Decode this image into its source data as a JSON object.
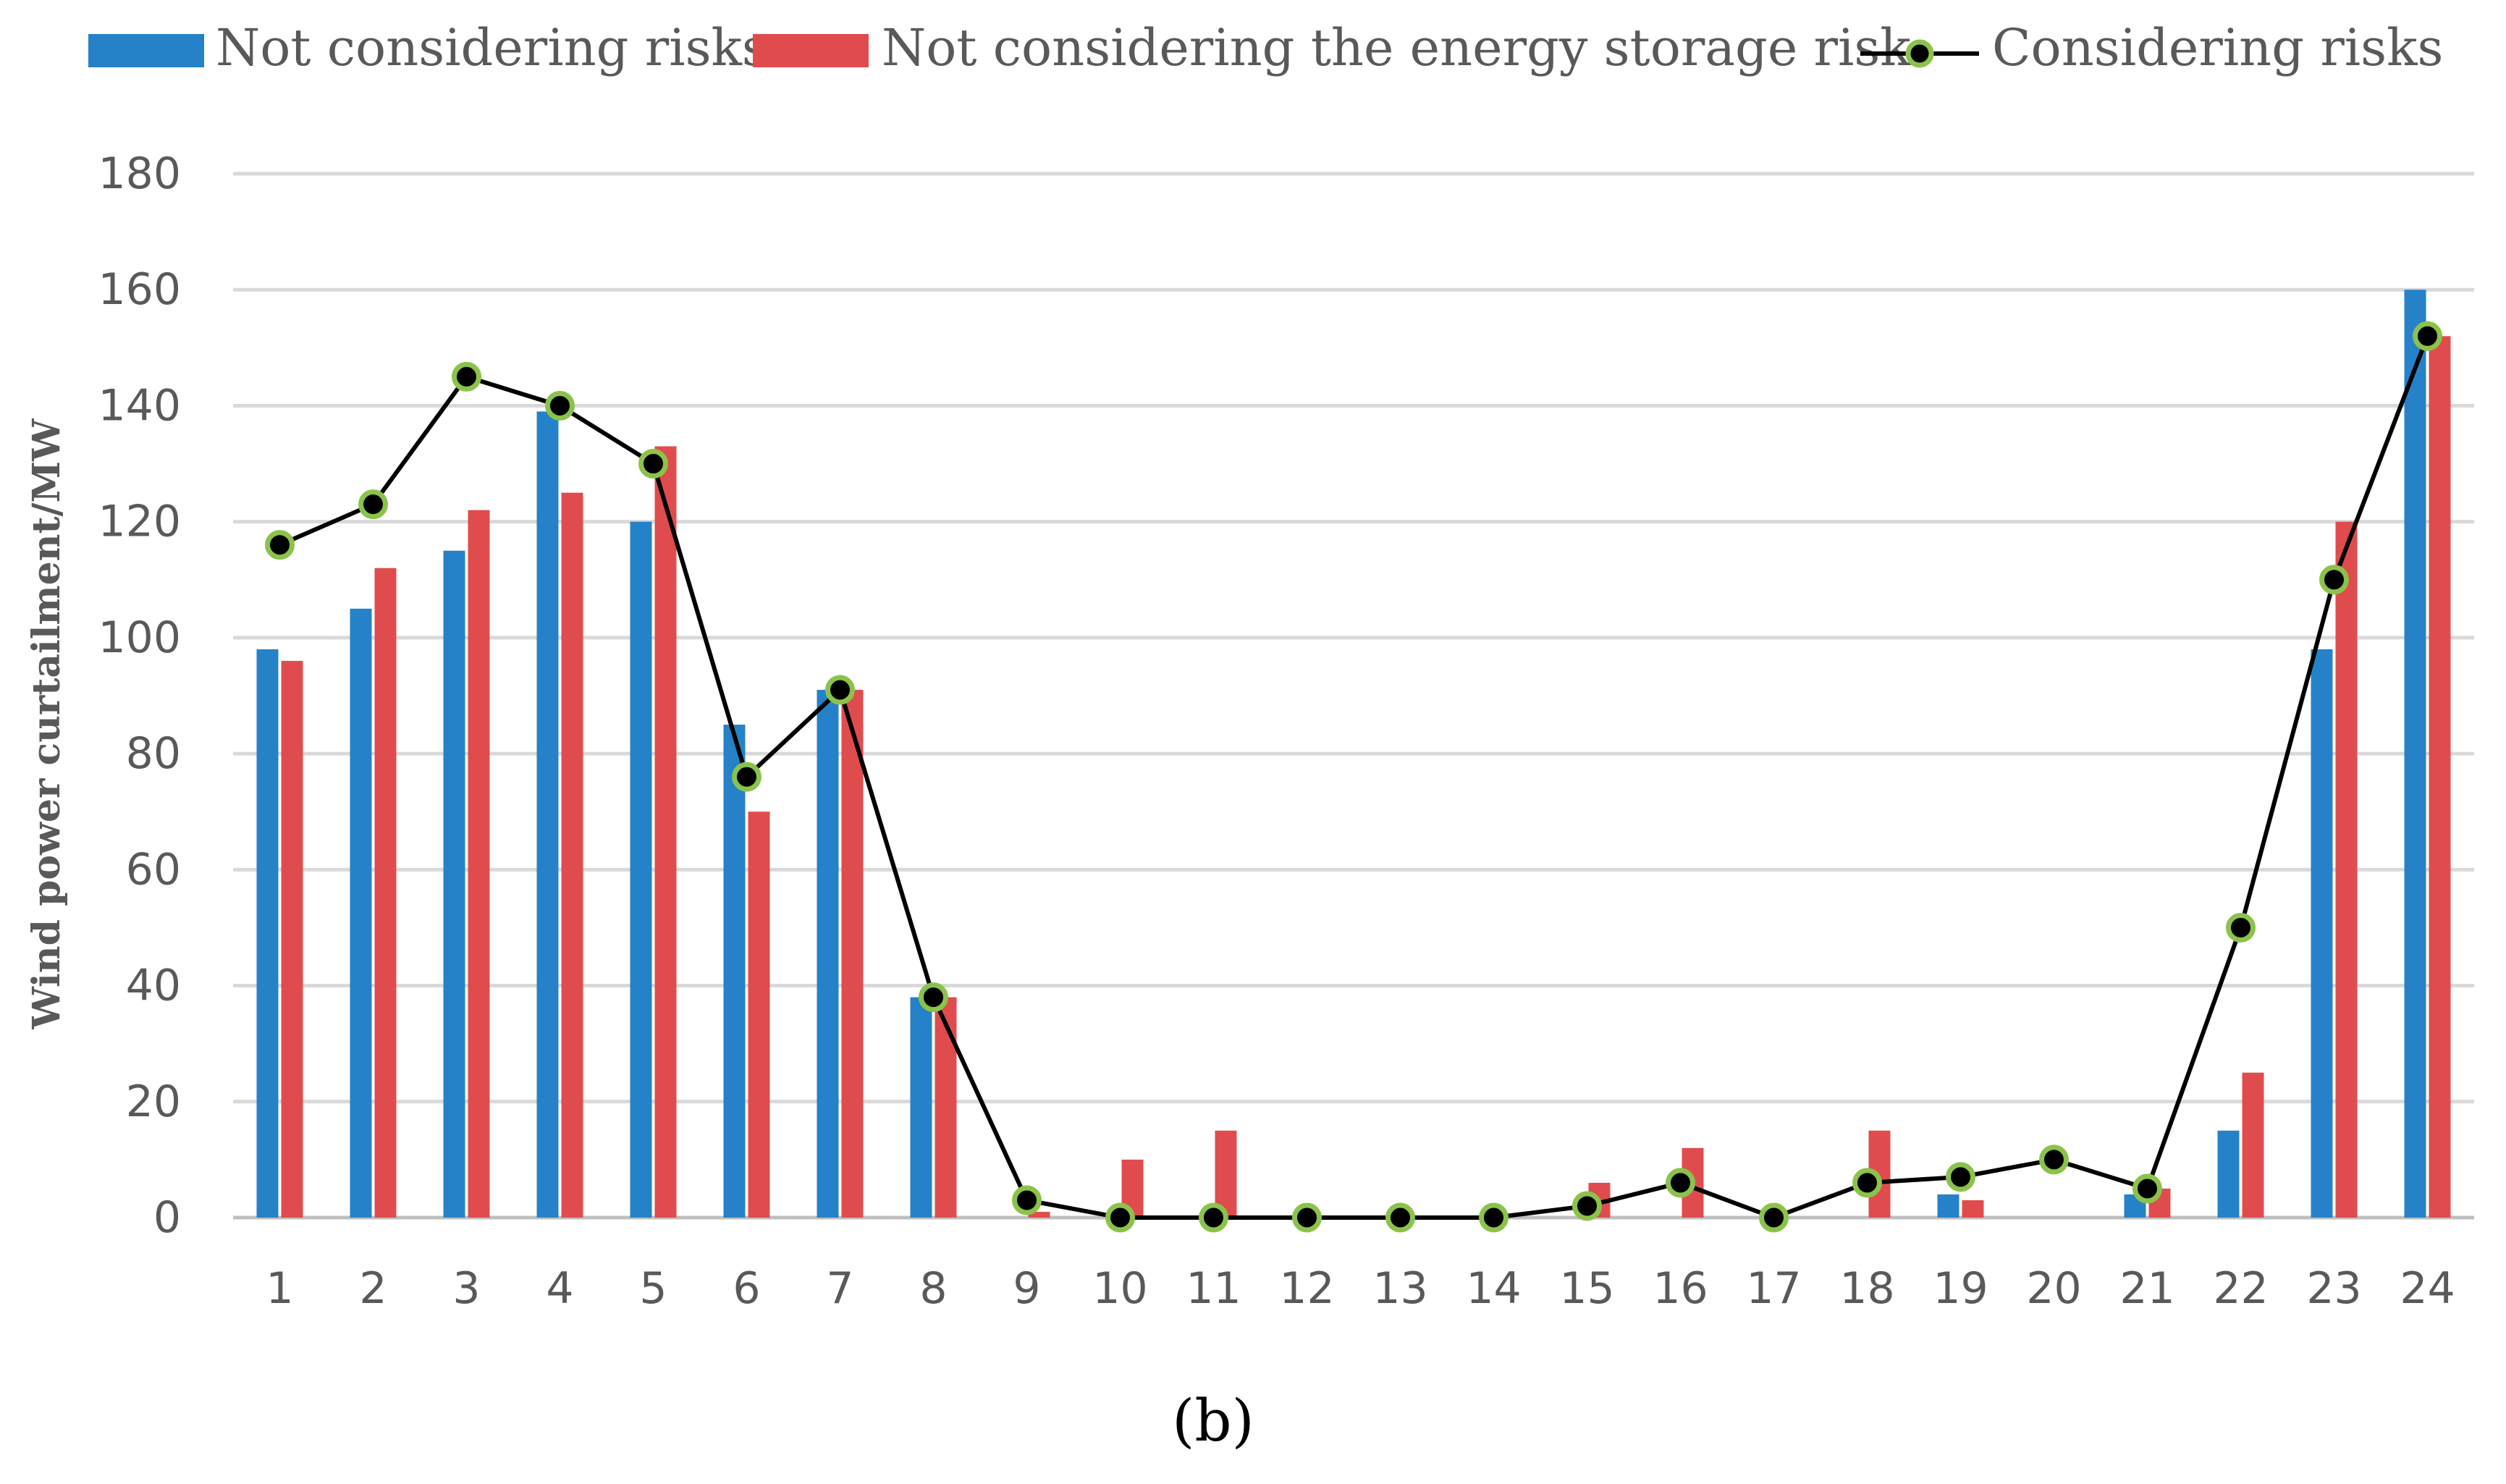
{
  "chart_data": {
    "type": "bar",
    "title": "",
    "caption": "(b)",
    "xlabel": "",
    "ylabel": "Wind power curtailment/MW",
    "ylim": [
      0,
      180
    ],
    "yticks": [
      0,
      20,
      40,
      60,
      80,
      100,
      120,
      140,
      160,
      180
    ],
    "grid": true,
    "legend_position": "top",
    "categories": [
      "1",
      "2",
      "3",
      "4",
      "5",
      "6",
      "7",
      "8",
      "9",
      "10",
      "11",
      "12",
      "13",
      "14",
      "15",
      "16",
      "17",
      "18",
      "19",
      "20",
      "21",
      "22",
      "23",
      "24"
    ],
    "series": [
      {
        "name": "Not considering risks",
        "type": "bar",
        "color": "#2582C8",
        "values": [
          98,
          105,
          115,
          139,
          120,
          85,
          91,
          38,
          0,
          0,
          0,
          0,
          0,
          0,
          0,
          0,
          0,
          0,
          4,
          0,
          4,
          15,
          98,
          160
        ]
      },
      {
        "name": "Not considering the energy storage risk",
        "type": "bar",
        "color": "#E04C4E",
        "values": [
          96,
          112,
          122,
          125,
          133,
          70,
          91,
          38,
          1,
          10,
          15,
          0,
          0,
          0,
          6,
          12,
          0,
          15,
          3,
          0,
          5,
          25,
          120,
          152
        ]
      },
      {
        "name": "Considering risks",
        "type": "line",
        "color": "#000000",
        "marker_edge_color": "#8BC34A",
        "values": [
          116,
          123,
          145,
          140,
          130,
          76,
          91,
          38,
          3,
          0,
          0,
          0,
          0,
          0,
          2,
          6,
          0,
          6,
          7,
          10,
          5,
          50,
          110,
          152
        ]
      }
    ]
  }
}
